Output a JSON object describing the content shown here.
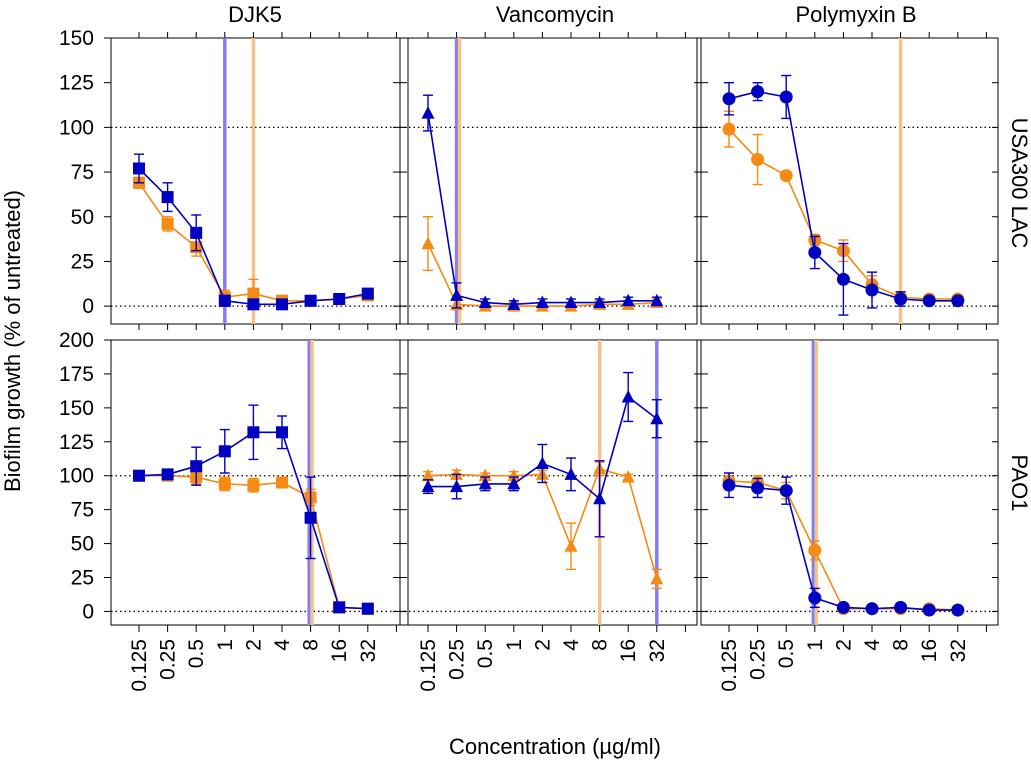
{
  "chart_data": {
    "type": "line",
    "ylabel": "Biofilm growth (% of untreated)",
    "xlabel": "Concentration (µg/ml)",
    "x_tick_labels": [
      "0.125",
      "0.25",
      "0.5",
      "1",
      "2",
      "4",
      "8",
      "16",
      "32"
    ],
    "columns": [
      "DJK5",
      "Vancomycin",
      "Polymyxin B"
    ],
    "rows": [
      "USA300 LAC",
      "PAO1"
    ],
    "row_axes": [
      {
        "ylim": [
          -10,
          150
        ],
        "ticks": [
          "0",
          "25",
          "50",
          "75",
          "100",
          "125",
          "150"
        ],
        "reference_lines": [
          0,
          100
        ]
      },
      {
        "ylim": [
          -10,
          200
        ],
        "ticks": [
          "0",
          "25",
          "50",
          "75",
          "100",
          "125",
          "150",
          "175",
          "200"
        ],
        "reference_lines": [
          0,
          100
        ]
      }
    ],
    "colors": {
      "blue": "#0000c0",
      "orange": "#f58a14",
      "blue_vline": "#8080f0",
      "orange_vline": "#f9c08a"
    },
    "panels": [
      {
        "row": 0,
        "col": 0,
        "marker": "square",
        "vlines": [
          {
            "color": "blue",
            "x": 3
          },
          {
            "color": "orange",
            "x": 4
          }
        ],
        "series": [
          {
            "name": "orange",
            "color": "orange",
            "x": [
              0,
              1,
              2,
              3,
              4,
              5,
              6,
              7,
              8
            ],
            "y": [
              69,
              46,
              33,
              5,
              7,
              3,
              3,
              4,
              6
            ],
            "err": [
              3,
              4,
              5,
              4,
              8,
              3,
              2,
              2,
              2
            ]
          },
          {
            "name": "blue",
            "color": "blue",
            "x": [
              0,
              1,
              2,
              3,
              4,
              5,
              6,
              7,
              8
            ],
            "y": [
              77,
              61,
              41,
              3,
              1,
              1,
              3,
              4,
              7
            ],
            "err": [
              8,
              8,
              10,
              3,
              2,
              2,
              2,
              2,
              2
            ]
          }
        ]
      },
      {
        "row": 0,
        "col": 1,
        "marker": "triangle",
        "vlines": [
          {
            "color": "blue",
            "x": 1
          },
          {
            "color": "orange",
            "x": 1.1
          }
        ],
        "series": [
          {
            "name": "orange",
            "color": "orange",
            "x": [
              0,
              1,
              2,
              3,
              4,
              5,
              6,
              7,
              8
            ],
            "y": [
              35,
              1,
              0,
              0,
              0,
              0,
              1,
              1,
              2
            ],
            "err": [
              15,
              3,
              2,
              2,
              2,
              2,
              2,
              2,
              2
            ]
          },
          {
            "name": "blue",
            "color": "blue",
            "x": [
              0,
              1,
              2,
              3,
              4,
              5,
              6,
              7,
              8
            ],
            "y": [
              108,
              6,
              2,
              1,
              2,
              2,
              2,
              3,
              3
            ],
            "err": [
              10,
              7,
              2,
              2,
              2,
              2,
              2,
              2,
              2
            ]
          }
        ]
      },
      {
        "row": 0,
        "col": 2,
        "marker": "circle",
        "vlines": [
          {
            "color": "orange",
            "x": 6
          }
        ],
        "series": [
          {
            "name": "orange",
            "color": "orange",
            "x": [
              0,
              1,
              2,
              3,
              4,
              5,
              6,
              7,
              8
            ],
            "y": [
              99,
              82,
              73,
              37,
              31,
              12,
              5,
              4,
              4
            ],
            "err": [
              10,
              14,
              2,
              3,
              6,
              5,
              3,
              2,
              2
            ]
          },
          {
            "name": "blue",
            "color": "blue",
            "x": [
              0,
              1,
              2,
              3,
              4,
              5,
              6,
              7,
              8
            ],
            "y": [
              116,
              120,
              117,
              30,
              15,
              9,
              4,
              3,
              3
            ],
            "err": [
              9,
              5,
              12,
              9,
              20,
              10,
              4,
              2,
              2
            ]
          }
        ]
      },
      {
        "row": 1,
        "col": 0,
        "marker": "square",
        "vlines": [
          {
            "color": "blue",
            "x": 5.95
          },
          {
            "color": "orange",
            "x": 6.05
          }
        ],
        "series": [
          {
            "name": "orange",
            "color": "orange",
            "x": [
              0,
              1,
              2,
              3,
              4,
              5,
              6,
              7,
              8
            ],
            "y": [
              100,
              100,
              99,
              94,
              93,
              95,
              84,
              3,
              2
            ],
            "err": [
              3,
              3,
              5,
              5,
              5,
              3,
              6,
              2,
              2
            ]
          },
          {
            "name": "blue",
            "color": "blue",
            "x": [
              0,
              1,
              2,
              3,
              4,
              5,
              6,
              7,
              8
            ],
            "y": [
              100,
              101,
              107,
              118,
              132,
              132,
              69,
              3,
              2
            ],
            "err": [
              2,
              2,
              14,
              16,
              20,
              12,
              30,
              2,
              2
            ]
          }
        ]
      },
      {
        "row": 1,
        "col": 1,
        "marker": "triangle",
        "vlines": [
          {
            "color": "orange",
            "x": 6
          },
          {
            "color": "blue",
            "x": 8
          }
        ],
        "series": [
          {
            "name": "orange",
            "color": "orange",
            "x": [
              0,
              1,
              2,
              3,
              4,
              5,
              6,
              7,
              8
            ],
            "y": [
              100,
              101,
              100,
              100,
              101,
              48,
              105,
              99,
              24
            ],
            "err": [
              3,
              3,
              2,
              3,
              3,
              17,
              5,
              2,
              7
            ]
          },
          {
            "name": "blue",
            "color": "blue",
            "x": [
              0,
              1,
              2,
              3,
              4,
              5,
              6,
              7,
              8
            ],
            "y": [
              92,
              92,
              94,
              94,
              109,
              101,
              83,
              158,
              142
            ],
            "err": [
              5,
              9,
              5,
              5,
              14,
              12,
              28,
              18,
              14
            ]
          }
        ]
      },
      {
        "row": 1,
        "col": 2,
        "marker": "circle",
        "vlines": [
          {
            "color": "blue",
            "x": 2.95
          },
          {
            "color": "orange",
            "x": 3.05
          }
        ],
        "series": [
          {
            "name": "orange",
            "color": "orange",
            "x": [
              0,
              1,
              2,
              3,
              4,
              5,
              6,
              7,
              8
            ],
            "y": [
              96,
              95,
              89,
              45,
              2,
              2,
              2,
              2,
              1
            ],
            "err": [
              6,
              5,
              6,
              7,
              2,
              2,
              2,
              2,
              2
            ]
          },
          {
            "name": "blue",
            "color": "blue",
            "x": [
              0,
              1,
              2,
              3,
              4,
              5,
              6,
              7,
              8
            ],
            "y": [
              93,
              91,
              89,
              10,
              3,
              2,
              3,
              1,
              1
            ],
            "err": [
              9,
              7,
              10,
              7,
              2,
              2,
              2,
              2,
              2
            ]
          }
        ]
      }
    ]
  }
}
